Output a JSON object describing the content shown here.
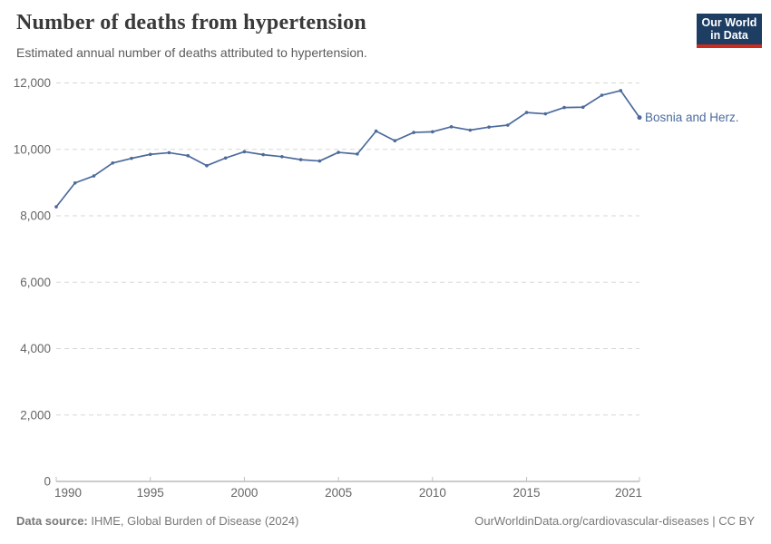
{
  "header": {
    "title": "Number of deaths from hypertension",
    "subtitle": "Estimated annual number of deaths attributed to hypertension.",
    "logo": {
      "line1": "Our World",
      "line2": "in Data",
      "bg_color": "#1d3d63",
      "stripe_color": "#ce2a1d"
    }
  },
  "chart_data": {
    "type": "line",
    "title": "Number of deaths from hypertension",
    "xlabel": "",
    "ylabel": "",
    "xlim": [
      1990,
      2021
    ],
    "ylim": [
      0,
      12000
    ],
    "x_ticks": [
      1990,
      1995,
      2000,
      2005,
      2010,
      2015,
      2021
    ],
    "y_ticks": [
      0,
      2000,
      4000,
      6000,
      8000,
      10000,
      12000
    ],
    "grid": "horizontal-dashed",
    "legend_position": "end-of-line-label",
    "x": [
      1990,
      1991,
      1992,
      1993,
      1994,
      1995,
      1996,
      1997,
      1998,
      1999,
      2000,
      2001,
      2002,
      2003,
      2004,
      2005,
      2006,
      2007,
      2008,
      2009,
      2010,
      2011,
      2012,
      2013,
      2014,
      2015,
      2016,
      2017,
      2018,
      2019,
      2020,
      2021
    ],
    "series": [
      {
        "name": "Bosnia and Herz.",
        "color": "#4c6a9c",
        "values": [
          8270,
          8990,
          9200,
          9590,
          9730,
          9850,
          9900,
          9810,
          9510,
          9740,
          9930,
          9840,
          9780,
          9690,
          9650,
          9910,
          9860,
          10550,
          10260,
          10510,
          10530,
          10680,
          10580,
          10670,
          10730,
          11110,
          11070,
          11260,
          11270,
          11630,
          11770,
          10960
        ]
      }
    ],
    "style": {
      "grid_color": "#d7d7d7",
      "axis_color": "#999999",
      "tick_color": "#c0c0c0",
      "tick_label_color": "#666666"
    }
  },
  "footer": {
    "source_label": "Data source:",
    "source_text": " IHME, Global Burden of Disease (2024)",
    "credit": "OurWorldinData.org/cardiovascular-diseases | CC BY"
  }
}
